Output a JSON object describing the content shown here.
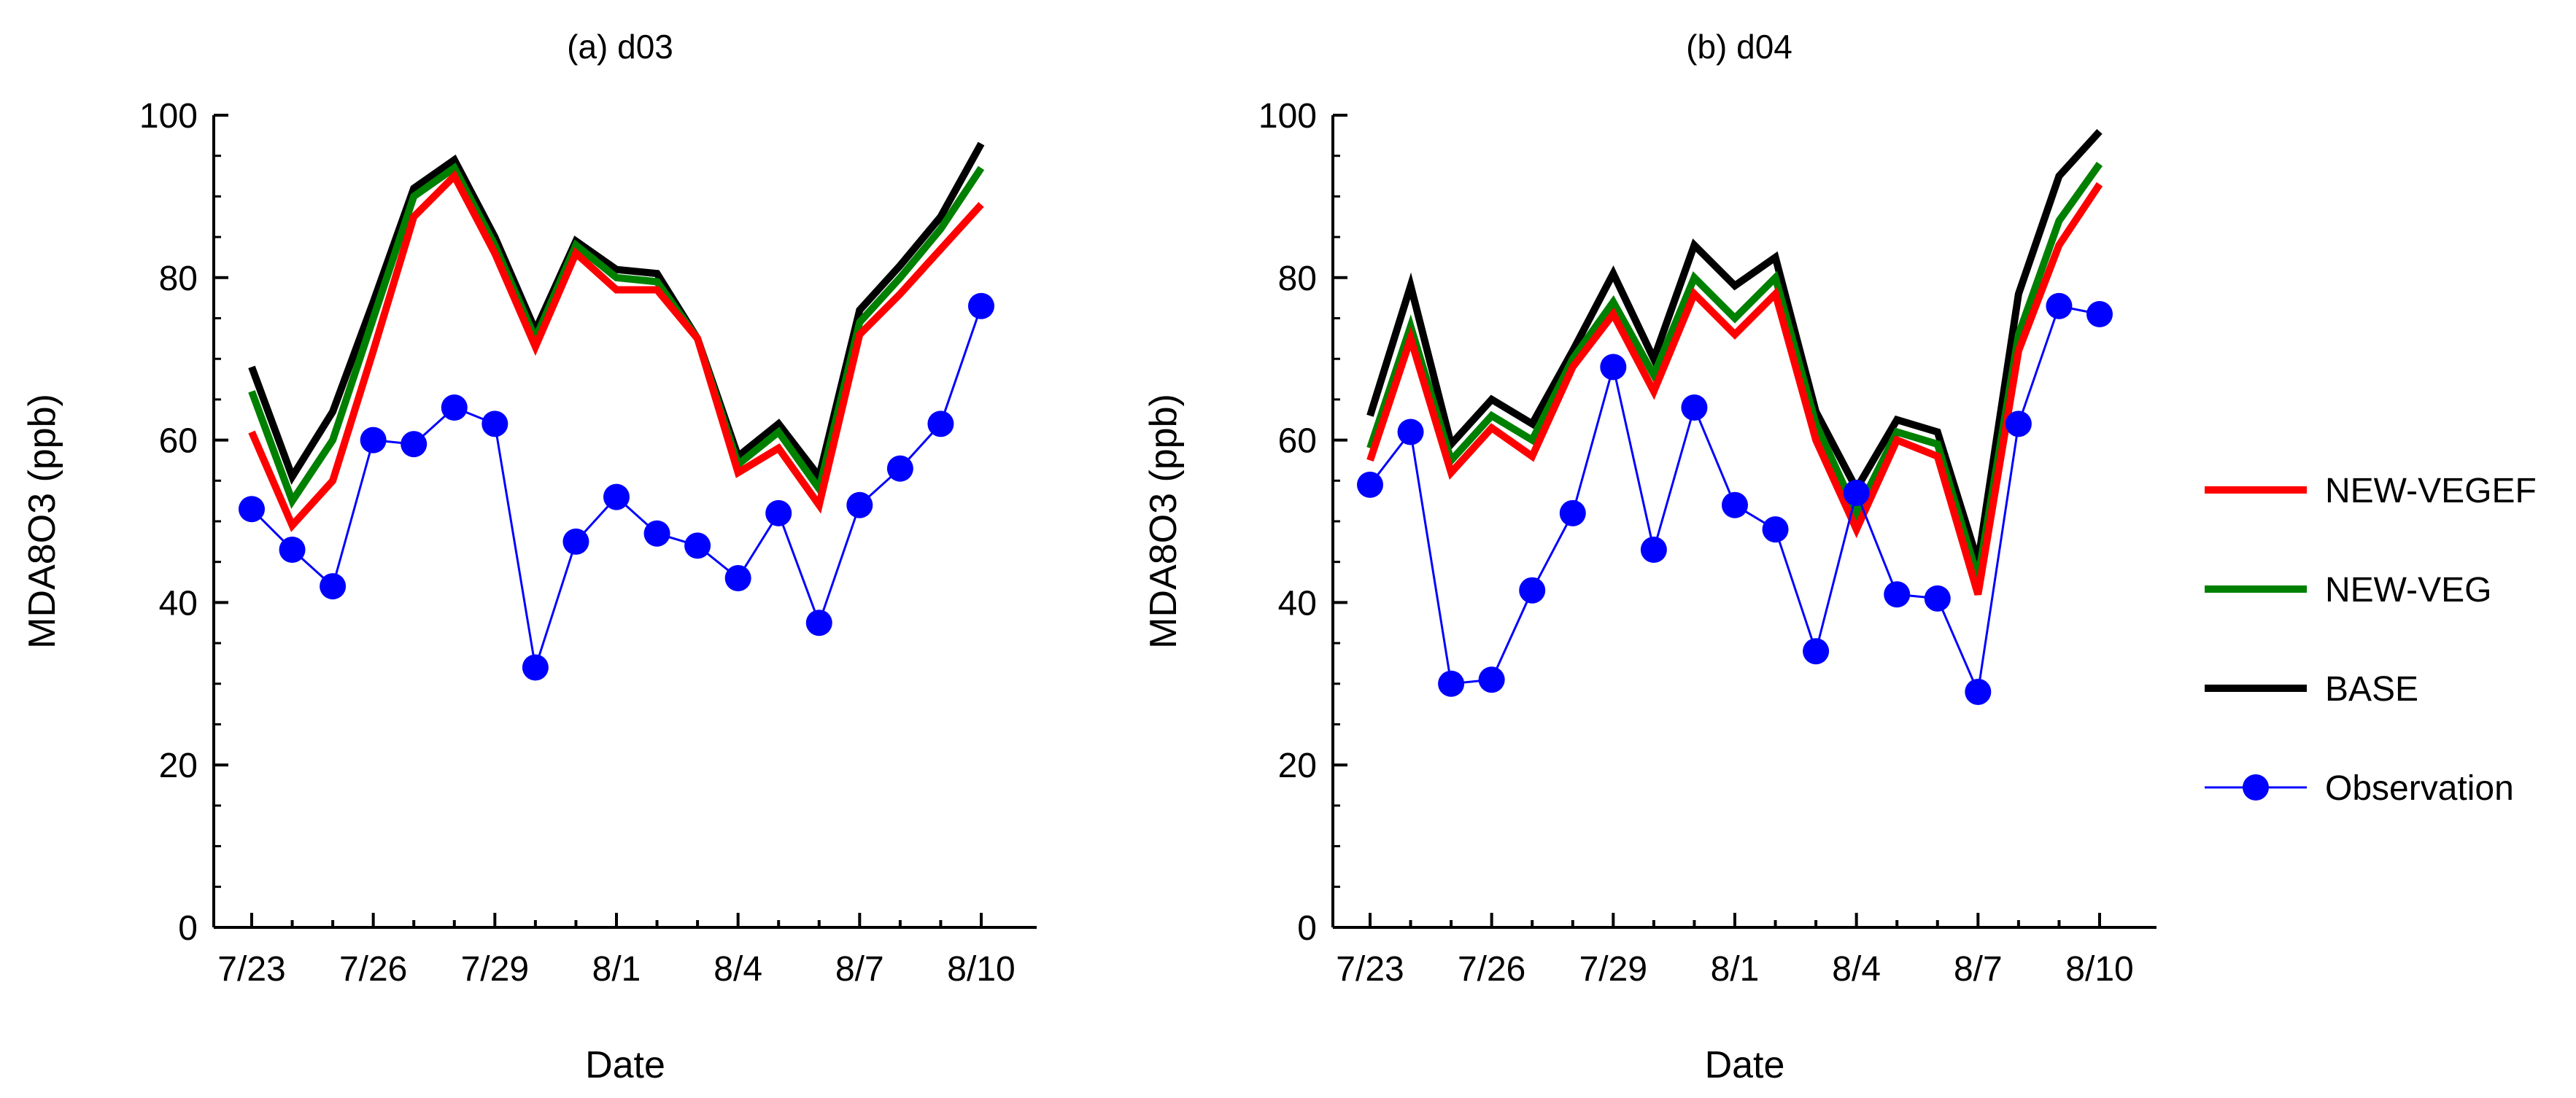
{
  "chart_data": [
    {
      "type": "line",
      "title": "(a) d03",
      "xlabel": "Date",
      "ylabel": "MDA8O3 (ppb)",
      "ylim": [
        0,
        100
      ],
      "yticks": [
        0,
        20,
        40,
        60,
        80,
        100
      ],
      "categories": [
        "7/23",
        "7/24",
        "7/25",
        "7/26",
        "7/27",
        "7/28",
        "7/29",
        "7/30",
        "7/31",
        "8/1",
        "8/2",
        "8/3",
        "8/4",
        "8/5",
        "8/6",
        "8/7",
        "8/8",
        "8/9",
        "8/10"
      ],
      "xtick_labels": [
        "7/23",
        "7/26",
        "7/29",
        "8/1",
        "8/4",
        "8/7",
        "8/10"
      ],
      "series": [
        {
          "name": "BASE",
          "color": "#000000",
          "values": [
            69,
            55.5,
            63.5,
            77,
            91,
            94.5,
            85,
            73.5,
            84.5,
            81,
            80.5,
            72.5,
            58,
            62,
            55.5,
            76,
            81.5,
            87.5,
            96.5
          ]
        },
        {
          "name": "NEW-VEG",
          "color": "#008000",
          "values": [
            66,
            52.5,
            60,
            75,
            90,
            93.5,
            84,
            72.5,
            84,
            80,
            79.5,
            72.5,
            57,
            61,
            54,
            74.5,
            80,
            86,
            93.5
          ]
        },
        {
          "name": "NEW-VEGEF",
          "color": "#ff0000",
          "values": [
            61,
            49.5,
            55,
            71,
            87.5,
            92.5,
            83,
            71.5,
            83,
            78.5,
            78.5,
            72.5,
            56,
            59,
            52,
            73,
            78,
            83.5,
            89
          ]
        },
        {
          "name": "Observation",
          "color": "#0000ff",
          "values": [
            51.5,
            46.5,
            42,
            60,
            59.5,
            64,
            62,
            32,
            47.5,
            53,
            48.5,
            47,
            43,
            51,
            37.5,
            52,
            56.5,
            62,
            76.5
          ]
        }
      ]
    },
    {
      "type": "line",
      "title": "(b) d04",
      "xlabel": "Date",
      "ylabel": "MDA8O3 (ppb)",
      "ylim": [
        0,
        100
      ],
      "yticks": [
        0,
        20,
        40,
        60,
        80,
        100
      ],
      "categories": [
        "7/23",
        "7/24",
        "7/25",
        "7/26",
        "7/27",
        "7/28",
        "7/29",
        "7/30",
        "7/31",
        "8/1",
        "8/2",
        "8/3",
        "8/4",
        "8/5",
        "8/6",
        "8/7",
        "8/8",
        "8/9",
        "8/10"
      ],
      "xtick_labels": [
        "7/23",
        "7/26",
        "7/29",
        "8/1",
        "8/4",
        "8/7",
        "8/10"
      ],
      "series": [
        {
          "name": "BASE",
          "color": "#000000",
          "values": [
            63,
            79,
            59.5,
            65,
            62,
            71,
            80.5,
            70,
            84,
            79,
            82.5,
            63.5,
            54,
            62.5,
            61,
            45,
            78,
            92.5,
            98
          ]
        },
        {
          "name": "NEW-VEG",
          "color": "#008000",
          "values": [
            59,
            74,
            57.5,
            63,
            60,
            70,
            77,
            68,
            80,
            75,
            80,
            62,
            51,
            61,
            59.5,
            43,
            73,
            87,
            94
          ]
        },
        {
          "name": "NEW-VEGEF",
          "color": "#ff0000",
          "values": [
            57.5,
            72.5,
            56,
            61.5,
            58,
            69,
            75.5,
            66,
            78,
            73,
            78,
            60,
            49,
            60,
            58,
            41,
            71,
            84,
            91.5
          ]
        },
        {
          "name": "Observation",
          "color": "#0000ff",
          "values": [
            54.5,
            61,
            30,
            30.5,
            41.5,
            51,
            69,
            46.5,
            64,
            52,
            49,
            34,
            53.5,
            41,
            40.5,
            29,
            62,
            76.5,
            75.5
          ]
        }
      ]
    }
  ],
  "legend": {
    "placement": "right",
    "items": [
      {
        "name": "NEW-VEGEF",
        "color": "#ff0000",
        "marker": false
      },
      {
        "name": "NEW-VEG",
        "color": "#008000",
        "marker": false
      },
      {
        "name": "BASE",
        "color": "#000000",
        "marker": false
      },
      {
        "name": "Observation",
        "color": "#0000ff",
        "marker": true
      }
    ]
  }
}
